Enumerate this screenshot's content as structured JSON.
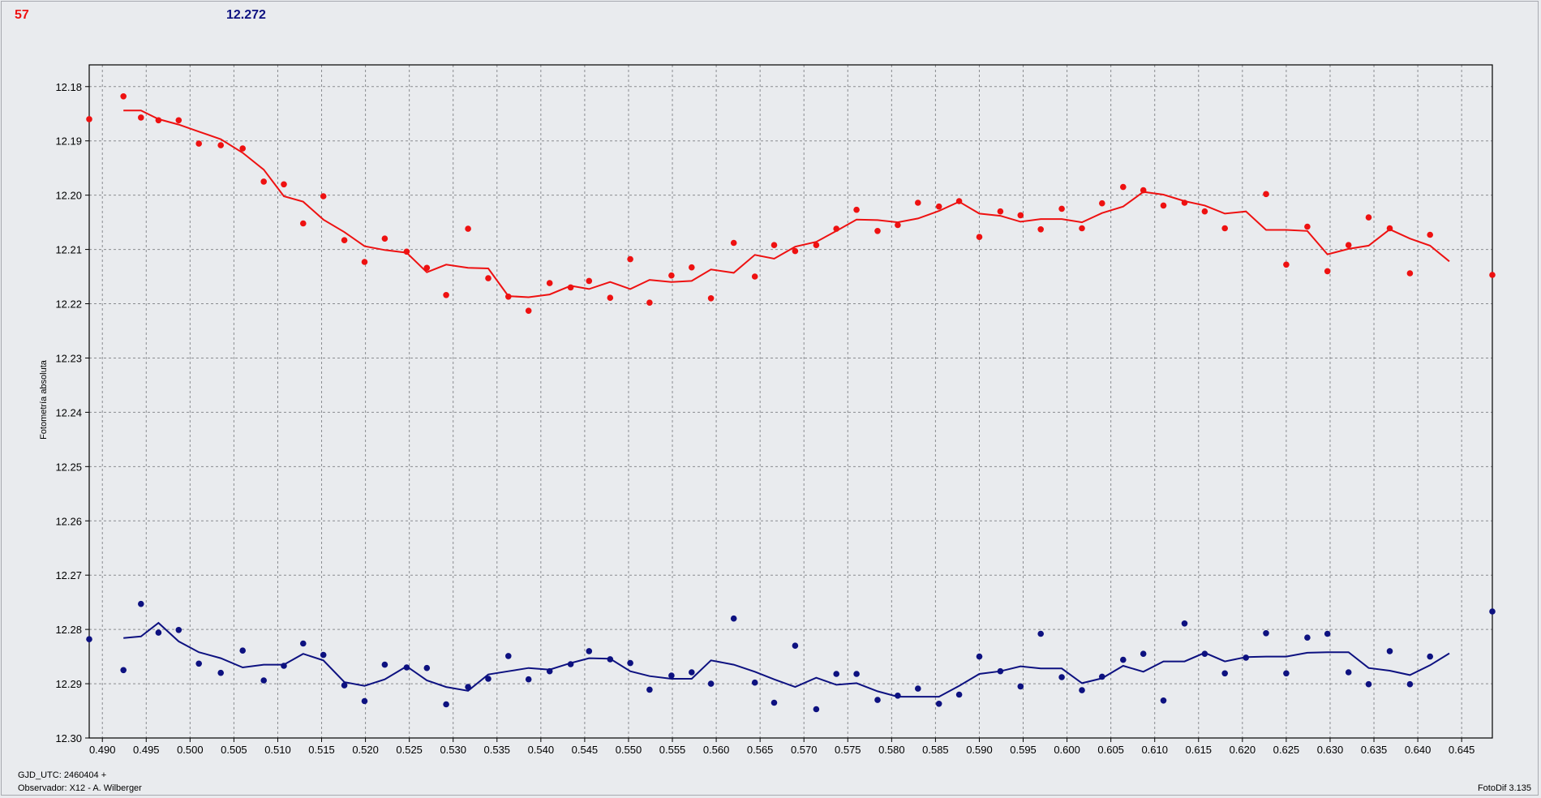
{
  "header": {
    "count": "57",
    "value": "12.272"
  },
  "footer": {
    "gjd": "GJD_UTC: 2460404 +",
    "observer": "Observador: X12 - A. Wilberger",
    "version": "FotoDif 3.135"
  },
  "colors": {
    "red": "#ee1111",
    "blue": "#0d1180",
    "grid": "#8a8c90",
    "plot_bg": "#e9ebee"
  },
  "chart_data": {
    "type": "scatter",
    "xlabel": "",
    "ylabel": "Fotometría absoluta",
    "xlim": [
      0.4885,
      0.6485
    ],
    "ylim": [
      12.176,
      12.3
    ],
    "y_inverted": true,
    "grid": true,
    "x_ticks": [
      "0.490",
      "0.495",
      "0.500",
      "0.505",
      "0.510",
      "0.515",
      "0.520",
      "0.525",
      "0.530",
      "0.535",
      "0.540",
      "0.545",
      "0.550",
      "0.555",
      "0.560",
      "0.565",
      "0.570",
      "0.575",
      "0.580",
      "0.585",
      "0.590",
      "0.595",
      "0.600",
      "0.605",
      "0.610",
      "0.615",
      "0.620",
      "0.625",
      "0.630",
      "0.635",
      "0.640",
      "0.645"
    ],
    "y_ticks": [
      "12.18",
      "12.19",
      "12.20",
      "12.21",
      "12.22",
      "12.23",
      "12.24",
      "12.25",
      "12.26",
      "12.27",
      "12.28",
      "12.29",
      "12.30"
    ],
    "series": [
      {
        "color": "#ee1111",
        "points": [
          [
            0.4885,
            12.186
          ],
          [
            0.4924,
            12.1818
          ],
          [
            0.4944,
            12.1857
          ],
          [
            0.4964,
            12.1862
          ],
          [
            0.4987,
            12.1862
          ],
          [
            0.501,
            12.1905
          ],
          [
            0.5035,
            12.1908
          ],
          [
            0.506,
            12.1914
          ],
          [
            0.5084,
            12.1975
          ],
          [
            0.5107,
            12.198
          ],
          [
            0.5129,
            12.2052
          ],
          [
            0.5152,
            12.2002
          ],
          [
            0.5176,
            12.2083
          ],
          [
            0.5199,
            12.2123
          ],
          [
            0.5222,
            12.208
          ],
          [
            0.5247,
            12.2104
          ],
          [
            0.527,
            12.2134
          ],
          [
            0.5292,
            12.2184
          ],
          [
            0.5317,
            12.2062
          ],
          [
            0.534,
            12.2153
          ],
          [
            0.5363,
            12.2187
          ],
          [
            0.5386,
            12.2213
          ],
          [
            0.541,
            12.2162
          ],
          [
            0.5434,
            12.217
          ],
          [
            0.5455,
            12.2158
          ],
          [
            0.5479,
            12.2189
          ],
          [
            0.5502,
            12.2118
          ],
          [
            0.5524,
            12.2198
          ],
          [
            0.5549,
            12.2148
          ],
          [
            0.5572,
            12.2133
          ],
          [
            0.5594,
            12.219
          ],
          [
            0.562,
            12.2088
          ],
          [
            0.5644,
            12.215
          ],
          [
            0.5666,
            12.2092
          ],
          [
            0.569,
            12.2103
          ],
          [
            0.5714,
            12.2092
          ],
          [
            0.5737,
            12.2062
          ],
          [
            0.576,
            12.2027
          ],
          [
            0.5784,
            12.2066
          ],
          [
            0.5807,
            12.2055
          ],
          [
            0.583,
            12.2014
          ],
          [
            0.5854,
            12.2021
          ],
          [
            0.5877,
            12.2011
          ],
          [
            0.59,
            12.2077
          ],
          [
            0.5924,
            12.203
          ],
          [
            0.5947,
            12.2037
          ],
          [
            0.597,
            12.2063
          ],
          [
            0.5994,
            12.2025
          ],
          [
            0.6017,
            12.2061
          ],
          [
            0.604,
            12.2015
          ],
          [
            0.6064,
            12.1985
          ],
          [
            0.6087,
            12.1991
          ],
          [
            0.611,
            12.2019
          ],
          [
            0.6134,
            12.2014
          ],
          [
            0.6157,
            12.203
          ],
          [
            0.618,
            12.2061
          ],
          [
            0.6227,
            12.1998
          ],
          [
            0.625,
            12.2128
          ],
          [
            0.6274,
            12.2058
          ],
          [
            0.6297,
            12.214
          ],
          [
            0.6321,
            12.2092
          ],
          [
            0.6344,
            12.2041
          ],
          [
            0.6368,
            12.2061
          ],
          [
            0.6391,
            12.2144
          ],
          [
            0.6414,
            12.2073
          ],
          [
            0.6485,
            12.2147
          ]
        ],
        "trend": [
          [
            0.4924,
            12.1844
          ],
          [
            0.4944,
            12.1844
          ],
          [
            0.4964,
            12.186
          ],
          [
            0.4987,
            12.187
          ],
          [
            0.501,
            12.1883
          ],
          [
            0.5035,
            12.1897
          ],
          [
            0.506,
            12.1922
          ],
          [
            0.5084,
            12.1953
          ],
          [
            0.5107,
            12.2002
          ],
          [
            0.5129,
            12.2012
          ],
          [
            0.5152,
            12.2045
          ],
          [
            0.5176,
            12.2068
          ],
          [
            0.5199,
            12.2094
          ],
          [
            0.5222,
            12.2101
          ],
          [
            0.5247,
            12.2106
          ],
          [
            0.527,
            12.2142
          ],
          [
            0.5292,
            12.2128
          ],
          [
            0.5317,
            12.2134
          ],
          [
            0.534,
            12.2135
          ],
          [
            0.5363,
            12.2186
          ],
          [
            0.5386,
            12.2188
          ],
          [
            0.541,
            12.2183
          ],
          [
            0.5434,
            12.2167
          ],
          [
            0.5455,
            12.2173
          ],
          [
            0.5479,
            12.216
          ],
          [
            0.5502,
            12.2173
          ],
          [
            0.5524,
            12.2156
          ],
          [
            0.5549,
            12.216
          ],
          [
            0.5572,
            12.2158
          ],
          [
            0.5594,
            12.2137
          ],
          [
            0.562,
            12.2143
          ],
          [
            0.5644,
            12.211
          ],
          [
            0.5666,
            12.2117
          ],
          [
            0.569,
            12.2095
          ],
          [
            0.5714,
            12.2086
          ],
          [
            0.5737,
            12.2066
          ],
          [
            0.576,
            12.2045
          ],
          [
            0.5784,
            12.2046
          ],
          [
            0.5807,
            12.205
          ],
          [
            0.583,
            12.2043
          ],
          [
            0.5854,
            12.2029
          ],
          [
            0.5877,
            12.2012
          ],
          [
            0.59,
            12.2034
          ],
          [
            0.5924,
            12.2038
          ],
          [
            0.5947,
            12.2049
          ],
          [
            0.597,
            12.2044
          ],
          [
            0.5994,
            12.2044
          ],
          [
            0.6017,
            12.205
          ],
          [
            0.604,
            12.2033
          ],
          [
            0.6064,
            12.2021
          ],
          [
            0.6087,
            12.1994
          ],
          [
            0.611,
            12.1999
          ],
          [
            0.6134,
            12.2011
          ],
          [
            0.6157,
            12.2019
          ],
          [
            0.618,
            12.2034
          ],
          [
            0.6204,
            12.203
          ],
          [
            0.6227,
            12.2064
          ],
          [
            0.625,
            12.2064
          ],
          [
            0.6274,
            12.2066
          ],
          [
            0.6297,
            12.2109
          ],
          [
            0.6321,
            12.2099
          ],
          [
            0.6344,
            12.2093
          ],
          [
            0.6368,
            12.2063
          ],
          [
            0.6391,
            12.208
          ],
          [
            0.6414,
            12.2093
          ],
          [
            0.6436,
            12.2122
          ]
        ]
      },
      {
        "color": "#0d1180",
        "points": [
          [
            0.4885,
            12.2818
          ],
          [
            0.4924,
            12.2875
          ],
          [
            0.4944,
            12.2753
          ],
          [
            0.4964,
            12.2806
          ],
          [
            0.4987,
            12.2801
          ],
          [
            0.501,
            12.2863
          ],
          [
            0.5035,
            12.288
          ],
          [
            0.506,
            12.2839
          ],
          [
            0.5084,
            12.2894
          ],
          [
            0.5107,
            12.2867
          ],
          [
            0.5129,
            12.2826
          ],
          [
            0.5152,
            12.2847
          ],
          [
            0.5176,
            12.2903
          ],
          [
            0.5199,
            12.2932
          ],
          [
            0.5222,
            12.2865
          ],
          [
            0.5247,
            12.287
          ],
          [
            0.527,
            12.2871
          ],
          [
            0.5292,
            12.2938
          ],
          [
            0.5317,
            12.2906
          ],
          [
            0.534,
            12.2891
          ],
          [
            0.5363,
            12.2849
          ],
          [
            0.5386,
            12.2892
          ],
          [
            0.541,
            12.2877
          ],
          [
            0.5434,
            12.2864
          ],
          [
            0.5455,
            12.284
          ],
          [
            0.5479,
            12.2855
          ],
          [
            0.5502,
            12.2862
          ],
          [
            0.5524,
            12.2911
          ],
          [
            0.5549,
            12.2885
          ],
          [
            0.5572,
            12.2879
          ],
          [
            0.5594,
            12.29
          ],
          [
            0.562,
            12.278
          ],
          [
            0.5644,
            12.2898
          ],
          [
            0.5666,
            12.2935
          ],
          [
            0.569,
            12.283
          ],
          [
            0.5714,
            12.2947
          ],
          [
            0.5737,
            12.2882
          ],
          [
            0.576,
            12.2882
          ],
          [
            0.5784,
            12.293
          ],
          [
            0.5807,
            12.2922
          ],
          [
            0.583,
            12.2909
          ],
          [
            0.5854,
            12.2937
          ],
          [
            0.5877,
            12.292
          ],
          [
            0.59,
            12.285
          ],
          [
            0.5924,
            12.2877
          ],
          [
            0.5947,
            12.2905
          ],
          [
            0.597,
            12.2808
          ],
          [
            0.5994,
            12.2888
          ],
          [
            0.6017,
            12.2912
          ],
          [
            0.604,
            12.2887
          ],
          [
            0.6064,
            12.2856
          ],
          [
            0.6087,
            12.2845
          ],
          [
            0.611,
            12.2931
          ],
          [
            0.6134,
            12.2789
          ],
          [
            0.6157,
            12.2845
          ],
          [
            0.618,
            12.2881
          ],
          [
            0.6204,
            12.2852
          ],
          [
            0.6227,
            12.2807
          ],
          [
            0.625,
            12.2881
          ],
          [
            0.6274,
            12.2815
          ],
          [
            0.6297,
            12.2808
          ],
          [
            0.6321,
            12.2879
          ],
          [
            0.6344,
            12.2901
          ],
          [
            0.6368,
            12.284
          ],
          [
            0.6391,
            12.2901
          ],
          [
            0.6414,
            12.285
          ],
          [
            0.6485,
            12.2767
          ]
        ],
        "trend": [
          [
            0.4924,
            12.2816
          ],
          [
            0.4944,
            12.2813
          ],
          [
            0.4964,
            12.2788
          ],
          [
            0.4987,
            12.2822
          ],
          [
            0.501,
            12.2842
          ],
          [
            0.5035,
            12.2853
          ],
          [
            0.506,
            12.287
          ],
          [
            0.5084,
            12.2865
          ],
          [
            0.5107,
            12.2865
          ],
          [
            0.5129,
            12.2845
          ],
          [
            0.5152,
            12.2857
          ],
          [
            0.5176,
            12.2897
          ],
          [
            0.5199,
            12.2904
          ],
          [
            0.5222,
            12.2892
          ],
          [
            0.5247,
            12.2868
          ],
          [
            0.527,
            12.2894
          ],
          [
            0.5292,
            12.2906
          ],
          [
            0.5317,
            12.2913
          ],
          [
            0.534,
            12.2883
          ],
          [
            0.5363,
            12.2877
          ],
          [
            0.5386,
            12.2871
          ],
          [
            0.541,
            12.2874
          ],
          [
            0.5434,
            12.2862
          ],
          [
            0.5455,
            12.2853
          ],
          [
            0.5479,
            12.2854
          ],
          [
            0.5502,
            12.2877
          ],
          [
            0.5524,
            12.2886
          ],
          [
            0.5549,
            12.2891
          ],
          [
            0.5572,
            12.2891
          ],
          [
            0.5594,
            12.2857
          ],
          [
            0.562,
            12.2865
          ],
          [
            0.5644,
            12.2878
          ],
          [
            0.5666,
            12.2892
          ],
          [
            0.569,
            12.2906
          ],
          [
            0.5714,
            12.2889
          ],
          [
            0.5737,
            12.2902
          ],
          [
            0.576,
            12.2899
          ],
          [
            0.5784,
            12.2914
          ],
          [
            0.5807,
            12.2924
          ],
          [
            0.583,
            12.2924
          ],
          [
            0.5854,
            12.2924
          ],
          [
            0.5877,
            12.2904
          ],
          [
            0.59,
            12.2882
          ],
          [
            0.5924,
            12.2877
          ],
          [
            0.5947,
            12.2868
          ],
          [
            0.597,
            12.2872
          ],
          [
            0.5994,
            12.2872
          ],
          [
            0.6017,
            12.2899
          ],
          [
            0.604,
            12.289
          ],
          [
            0.6064,
            12.2867
          ],
          [
            0.6087,
            12.2878
          ],
          [
            0.611,
            12.2859
          ],
          [
            0.6134,
            12.2859
          ],
          [
            0.6157,
            12.2843
          ],
          [
            0.618,
            12.2859
          ],
          [
            0.6204,
            12.2851
          ],
          [
            0.6227,
            12.285
          ],
          [
            0.625,
            12.285
          ],
          [
            0.6274,
            12.2843
          ],
          [
            0.6297,
            12.2842
          ],
          [
            0.6321,
            12.2842
          ],
          [
            0.6344,
            12.2871
          ],
          [
            0.6368,
            12.2876
          ],
          [
            0.6391,
            12.2884
          ],
          [
            0.6414,
            12.2866
          ],
          [
            0.6436,
            12.2844
          ]
        ]
      }
    ]
  }
}
